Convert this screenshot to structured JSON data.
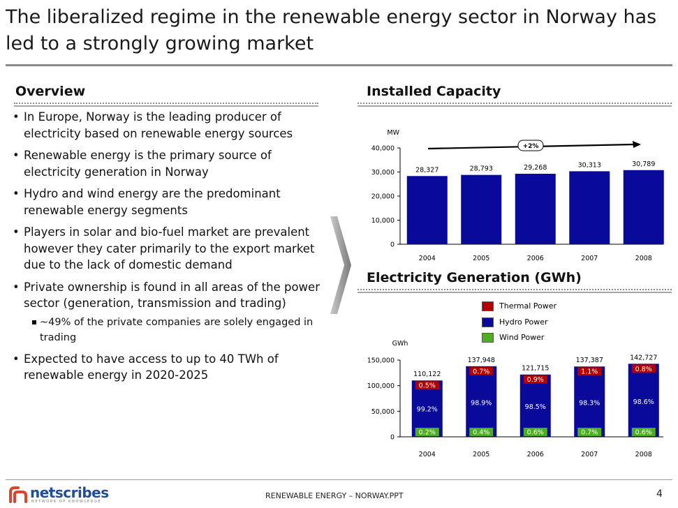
{
  "title": "The liberalized regime in the renewable energy sector in Norway has led to a strongly growing market",
  "overview": {
    "heading": "Overview",
    "bullets": [
      "In Europe, Norway is the leading producer of electricity based on renewable energy sources",
      "Renewable energy is the primary source of electricity generation in Norway",
      "Hydro and wind energy are the predominant renewable energy segments",
      "Players in solar and bio-fuel market are prevalent however they cater primarily to the export market due to the lack of domestic demand",
      "Private ownership is found in all areas of the power sector (generation, transmission and trading)"
    ],
    "sub_bullet": "~49% of the private companies are solely engaged in trading",
    "last_bullet": "Expected to have access to up to 40 TWh of renewable energy in 2020-2025",
    "bullet_char": "•"
  },
  "chart_data": [
    {
      "type": "bar",
      "title": "Installed Capacity",
      "ylabel": "MW",
      "categories": [
        "2004",
        "2005",
        "2006",
        "2007",
        "2008"
      ],
      "values": [
        28327,
        28793,
        29268,
        30313,
        30789
      ],
      "value_labels": [
        "28,327",
        "28,793",
        "29,268",
        "30,313",
        "30,789"
      ],
      "ylim": [
        0,
        40000
      ],
      "yticks": [
        0,
        10000,
        20000,
        30000,
        40000
      ],
      "ytick_labels": [
        "0",
        "10,000",
        "20,000",
        "30,000",
        "40,000"
      ],
      "trend_label": "+2%",
      "bar_color": "#0a0a9a"
    },
    {
      "type": "bar",
      "title": "Electricity Generation (GWh)",
      "ylabel": "GWh",
      "categories": [
        "2004",
        "2005",
        "2006",
        "2007",
        "2008"
      ],
      "totals": [
        110122,
        137948,
        121715,
        137387,
        142727
      ],
      "total_labels": [
        "110,122",
        "137,948",
        "121,715",
        "137,387",
        "142,727"
      ],
      "ylim": [
        0,
        150000
      ],
      "yticks": [
        0,
        50000,
        100000,
        150000
      ],
      "ytick_labels": [
        "0",
        "50,000",
        "100,000",
        "150,000"
      ],
      "series": [
        {
          "name": "Thermal Power",
          "color": "#b30000",
          "share_labels": [
            "0.5%",
            "0.7%",
            "0.9%",
            "1.1%",
            "0.8%"
          ]
        },
        {
          "name": "Hydro Power",
          "color": "#0a0a9a",
          "share_labels": [
            "99.2%",
            "98.9%",
            "98.5%",
            "98.3%",
            "98.6%"
          ]
        },
        {
          "name": "Wind Power",
          "color": "#4caf1e",
          "share_labels": [
            "0.2%",
            "0.4%",
            "0.6%",
            "0.7%",
            "0.6%"
          ]
        }
      ],
      "legend": [
        "Thermal Power",
        "Hydro Power",
        "Wind Power"
      ]
    }
  ],
  "footer": {
    "logo_text": "netscribes",
    "logo_tagline": "NETWORK OF KNOWLEDGE",
    "center_text": "RENEWABLE ENERGY – NORWAY.PPT",
    "page_number": "4"
  }
}
